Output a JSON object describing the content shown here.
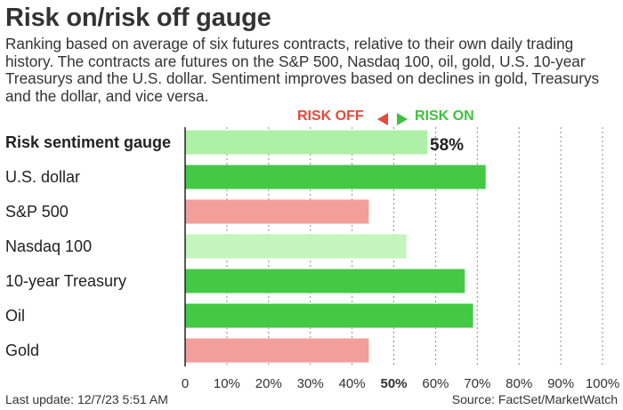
{
  "title": "Risk on/risk off gauge",
  "subtitle": "Ranking based on average of six futures contracts, relative to their own daily trading history. The contracts are futures on the S&P 500, Nasdaq 100, oil, gold, U.S. 10-year Treasurys and the U.S. dollar. Sentiment improves based on declines in gold, Treasurys and the dollar, and vice versa.",
  "legend": {
    "off_label": "RISK OFF",
    "on_label": "RISK ON"
  },
  "footer": {
    "last_update": "Last update: 12/7/23 5:51 AM",
    "source": "Source: FactSet/MarketWatch"
  },
  "colors": {
    "risk_on": "#44c944",
    "mild_on": "#aef0a6",
    "risk_off": "#f29f9a",
    "title": "#333333"
  },
  "chart_data": {
    "type": "bar",
    "orientation": "horizontal",
    "categories": [
      "Risk sentiment gauge",
      "U.S. dollar",
      "S&P 500",
      "Nasdaq 100",
      "10-year Treasury",
      "Oil",
      "Gold"
    ],
    "values": [
      58,
      72,
      44,
      53,
      67,
      69,
      44
    ],
    "bar_colors": [
      "#aef0a6",
      "#44c944",
      "#f29f9a",
      "#c4f5bd",
      "#44c944",
      "#44c944",
      "#f29f9a"
    ],
    "value_labels": [
      "58%",
      "",
      "",
      "",
      "",
      "",
      ""
    ],
    "bold_categories": [
      "Risk sentiment gauge"
    ],
    "xlim": [
      0,
      100
    ],
    "xticks": [
      "0",
      "10%",
      "20%",
      "30%",
      "40%",
      "50%",
      "60%",
      "70%",
      "80%",
      "90%",
      "100%"
    ],
    "bold_tick": "50%",
    "grid": true
  }
}
